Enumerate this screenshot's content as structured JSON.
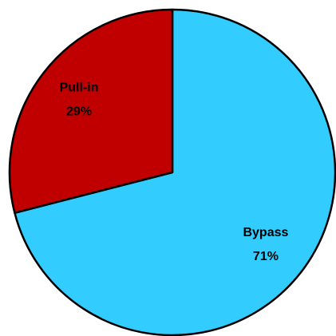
{
  "chart_data": {
    "type": "pie",
    "categories": [
      "Bypass",
      "Pull-in"
    ],
    "values": [
      71,
      29
    ],
    "value_labels": [
      "71%",
      "29%"
    ],
    "colors": [
      "#33ccff",
      "#c00000"
    ]
  }
}
